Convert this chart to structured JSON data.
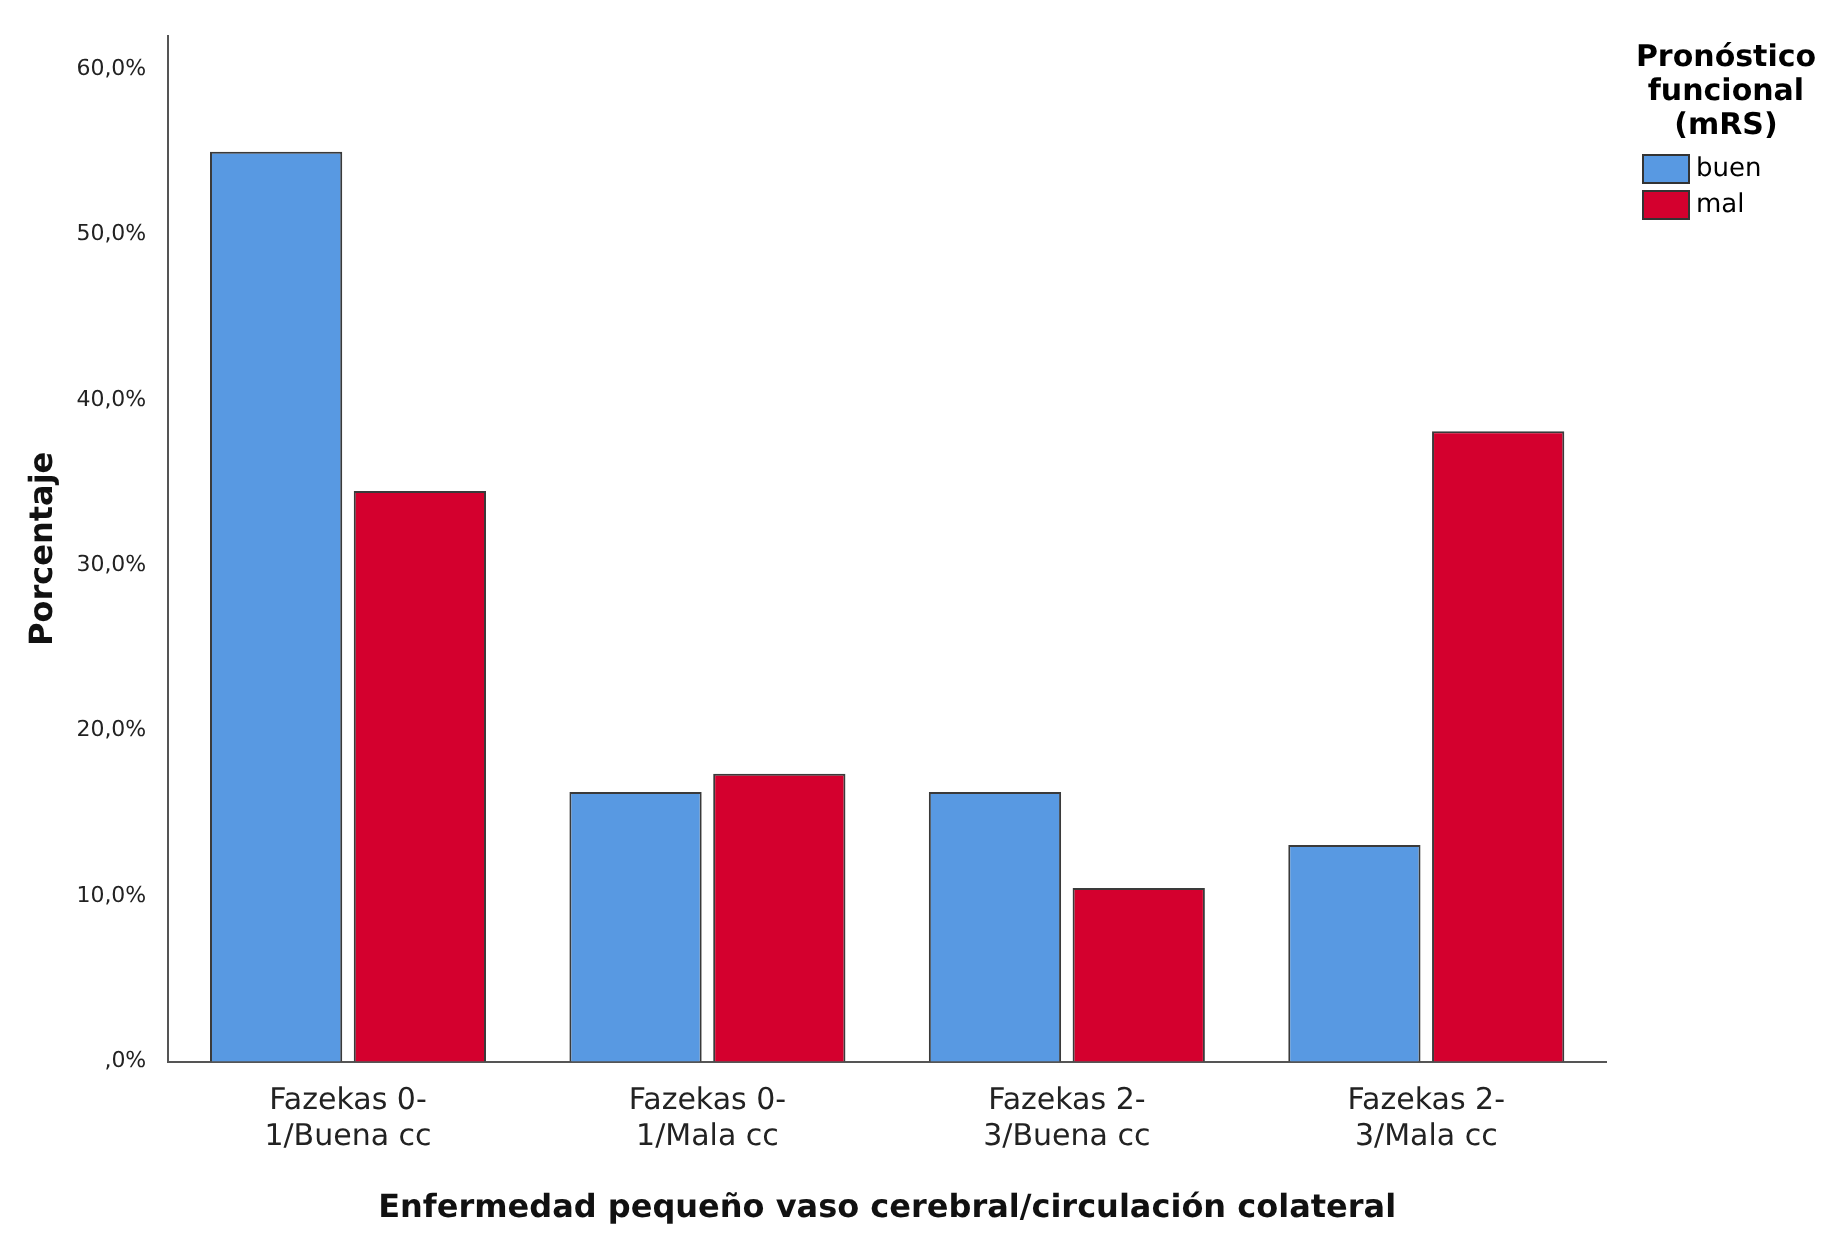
{
  "chart_data": {
    "type": "bar",
    "xlabel": "Enfermedad pequeño vaso cerebral/circulación colateral",
    "ylabel": "Porcentaje",
    "legend_title": "Pronóstico funcional (mRS)",
    "legend": "top right",
    "grid": false,
    "categories": [
      "Fazekas 0-1/Buena cc",
      "Fazekas 0-1/Mala cc",
      "Fazekas 2-3/Buena cc",
      "Fazekas 2-3/Mala cc"
    ],
    "ylim": [
      0,
      62
    ],
    "yticks": [
      {
        "value": 0,
        "label": ",0%"
      },
      {
        "value": 10,
        "label": "10,0%"
      },
      {
        "value": 20,
        "label": "20,0%"
      },
      {
        "value": 30,
        "label": "30,0%"
      },
      {
        "value": 40,
        "label": "40,0%"
      },
      {
        "value": 50,
        "label": "50,0%"
      },
      {
        "value": 60,
        "label": "60,0%"
      }
    ],
    "series": [
      {
        "name": "buen",
        "color": "#5899e2",
        "values": [
          55.0,
          16.3,
          16.3,
          13.1
        ]
      },
      {
        "name": "mal",
        "color": "#d4002e",
        "values": [
          34.5,
          17.4,
          10.5,
          38.1
        ]
      }
    ]
  }
}
